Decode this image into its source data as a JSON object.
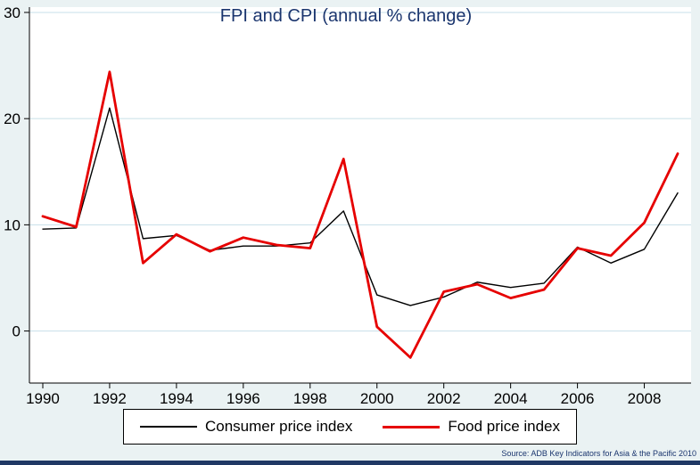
{
  "chart_data": {
    "type": "line",
    "title": "FPI and CPI (annual % change)",
    "xlabel": "",
    "ylabel": "",
    "grid": true,
    "legend_position": "bottom",
    "x": [
      1990,
      1991,
      1992,
      1993,
      1994,
      1995,
      1996,
      1997,
      1998,
      1999,
      2000,
      2001,
      2002,
      2003,
      2004,
      2005,
      2006,
      2007,
      2008,
      2009
    ],
    "series": [
      {
        "name": "Consumer price index",
        "color": "#000000",
        "width": 1.4,
        "values": [
          9.6,
          9.7,
          21.0,
          8.7,
          9.0,
          7.6,
          8.0,
          8.0,
          8.3,
          11.3,
          3.4,
          2.4,
          3.2,
          4.6,
          4.1,
          4.5,
          7.9,
          6.4,
          7.7,
          13.0
        ]
      },
      {
        "name": "Food price index",
        "color": "#e60000",
        "width": 2.8,
        "values": [
          10.8,
          9.8,
          24.4,
          6.4,
          9.1,
          7.5,
          8.8,
          8.1,
          7.8,
          16.2,
          0.4,
          -2.5,
          3.7,
          4.4,
          3.1,
          3.9,
          7.8,
          7.1,
          10.2,
          16.7
        ]
      }
    ],
    "xticks": [
      1990,
      1992,
      1994,
      1996,
      1998,
      2000,
      2002,
      2004,
      2006,
      2008
    ],
    "yticks": [
      0,
      10,
      20,
      30
    ],
    "xlim": [
      1989.6,
      2009.4
    ],
    "ylim": [
      -4.9,
      30.5
    ],
    "colors": {
      "background": "#eaf2f3",
      "plot_background": "#ffffff",
      "grid": "#c7dfe8",
      "title": "#1a356e",
      "axis": "#000000",
      "bottom_bar": "#1f3864"
    }
  },
  "source_note": "Source: ADB Key Indicators for Asia & the Pacific 2010"
}
